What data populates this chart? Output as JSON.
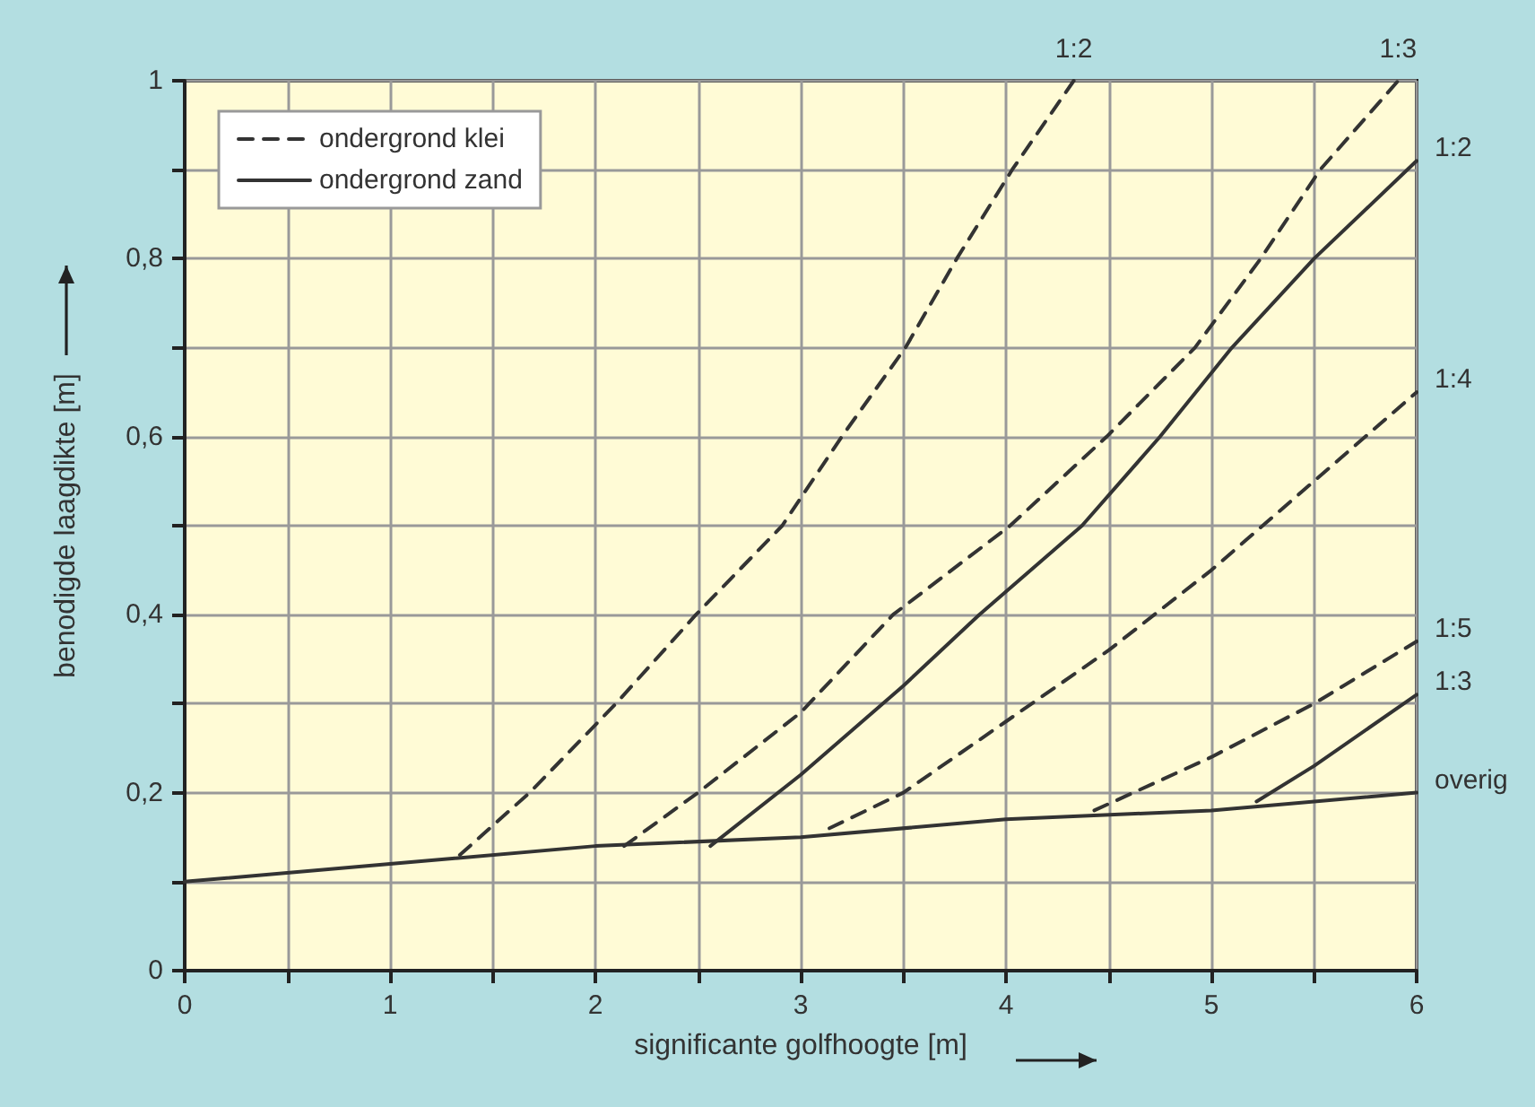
{
  "chart_data": {
    "type": "line",
    "xlabel": "significante golfhoogte [m]",
    "ylabel": "benodigde laagdikte [m]",
    "xlim": [
      0,
      6
    ],
    "ylim": [
      0,
      1
    ],
    "xticks": [
      0,
      {
        "value": 0.5,
        "label": null
      },
      1,
      {
        "value": 1.5,
        "label": null
      },
      2,
      {
        "value": 2.5,
        "label": null
      },
      3,
      {
        "value": 3.5,
        "label": null
      },
      4,
      {
        "value": 4.5,
        "label": null
      },
      5,
      {
        "value": 5.5,
        "label": null
      },
      6
    ],
    "yticks": [
      0,
      {
        "value": 0.1,
        "label": null
      },
      {
        "value": 0.2,
        "label": "0,2"
      },
      {
        "value": 0.3,
        "label": null
      },
      {
        "value": 0.4,
        "label": "0,4"
      },
      {
        "value": 0.5,
        "label": null
      },
      {
        "value": 0.6,
        "label": "0,6"
      },
      {
        "value": 0.7,
        "label": null
      },
      {
        "value": 0.8,
        "label": "0,8"
      },
      {
        "value": 0.9,
        "label": null
      },
      1
    ],
    "grid": true,
    "legend": "top left",
    "marker": "none",
    "series": [
      {
        "color": "#333333",
        "line_style": "solid",
        "x": [
          0,
          1,
          2,
          3,
          4,
          5,
          6
        ],
        "values": [
          0.1,
          0.12,
          0.14,
          0.15,
          0.17,
          0.18,
          0.2
        ]
      },
      {
        "name": "ondergrond klei",
        "color": "#333333",
        "line_style": "dashed",
        "x": [
          1.34,
          1.68,
          2.1,
          2.49,
          2.91,
          3.2,
          3.51,
          3.76,
          4.03,
          4.33
        ],
        "values": [
          0.13,
          0.2,
          0.3,
          0.4,
          0.5,
          0.6,
          0.7,
          0.8,
          0.9,
          1.0
        ]
      },
      {
        "color": "#333333",
        "line_style": "dashed",
        "x": [
          2.14,
          2.5,
          3,
          3.45,
          4.02,
          4.49,
          4.92,
          5.24,
          5.53,
          5.91
        ],
        "values": [
          0.14,
          0.2,
          0.29,
          0.4,
          0.5,
          0.6,
          0.7,
          0.8,
          0.9,
          1.0
        ]
      },
      {
        "name": "ondergrond zand",
        "color": "#333333",
        "line_style": "solid",
        "x": [
          2.56,
          3,
          3.5,
          3.87,
          4.37,
          4.75,
          5.1,
          5.5,
          6
        ],
        "values": [
          0.14,
          0.22,
          0.32,
          0.4,
          0.5,
          0.6,
          0.7,
          0.8,
          0.91
        ]
      },
      {
        "color": "#333333",
        "line_style": "dashed",
        "x": [
          3.14,
          3.5,
          4,
          4.5,
          5,
          5.5,
          6
        ],
        "values": [
          0.16,
          0.2,
          0.28,
          0.36,
          0.45,
          0.55,
          0.65
        ]
      },
      {
        "color": "#333333",
        "line_style": "dashed",
        "x": [
          4.43,
          5,
          5.5,
          6
        ],
        "values": [
          0.18,
          0.24,
          0.3,
          0.37
        ]
      },
      {
        "color": "#333333",
        "line_style": "solid",
        "x": [
          5.22,
          5.5,
          6
        ],
        "values": [
          0.19,
          0.23,
          0.31
        ]
      }
    ],
    "annotations": [
      {
        "text": "1:2",
        "x": 4.33,
        "y": 1
      },
      {
        "text": "1:3",
        "x": 5.91,
        "y": 1
      },
      {
        "text": "1:2",
        "x": 6,
        "y": 0.91
      },
      {
        "text": "1:4",
        "x": 6,
        "y": 0.65
      },
      {
        "text": "1:5",
        "x": 6,
        "y": 0.37
      },
      {
        "text": "1:3",
        "x": 6,
        "y": 0.31
      },
      {
        "text": "overig",
        "x": 6,
        "y": 0.2
      }
    ]
  }
}
